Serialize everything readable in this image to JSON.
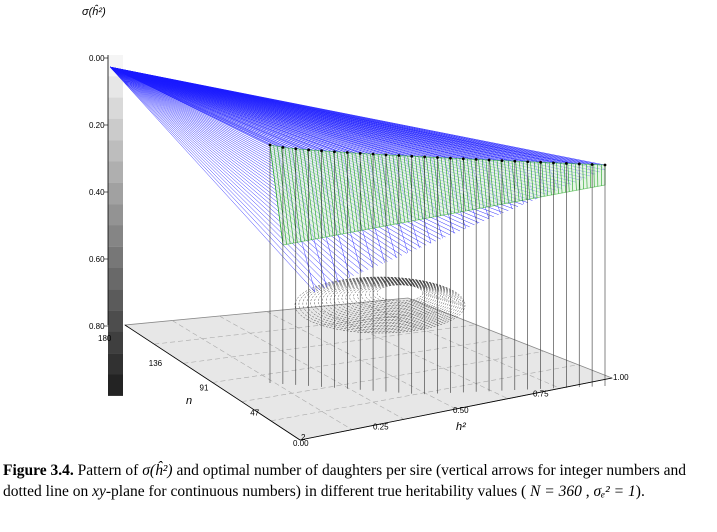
{
  "chart_data": {
    "type": "3d-surface",
    "z_axis": {
      "title": "σ(ĥ²)",
      "ticks": [
        "0.00",
        "0.20",
        "0.40",
        "0.60",
        "0.80"
      ],
      "range": [
        0.0,
        0.8
      ]
    },
    "n_axis": {
      "title": "n",
      "ticks": [
        "2",
        "47",
        "91",
        "136",
        "180"
      ],
      "range": [
        2,
        180
      ]
    },
    "h_axis": {
      "title": "h²",
      "ticks": [
        "0.00",
        "0.25",
        "0.50",
        "0.75",
        "1.00"
      ],
      "range": [
        0.0,
        1.0
      ]
    },
    "series": [
      {
        "name": "sigma_surface",
        "color": "#1a1aff"
      },
      {
        "name": "optimal_ridge",
        "color": "#1fa61f"
      },
      {
        "name": "integer_optimum_arrows",
        "color": "#000000"
      }
    ]
  },
  "caption": {
    "label": "Figure 3.4.",
    "t1": " Pattern of ",
    "sigma": "σ(ĥ²)",
    "t2": " and optimal number of daughters per sire (vertical arrows for integer numbers and dotted line on ",
    "xy": "xy",
    "t3": "-plane for continuous numbers) in different true heritability values ( ",
    "eq1": "N = 360",
    "t4": " ,  ",
    "eq2": "σₑ² = 1",
    "t5": ")."
  }
}
